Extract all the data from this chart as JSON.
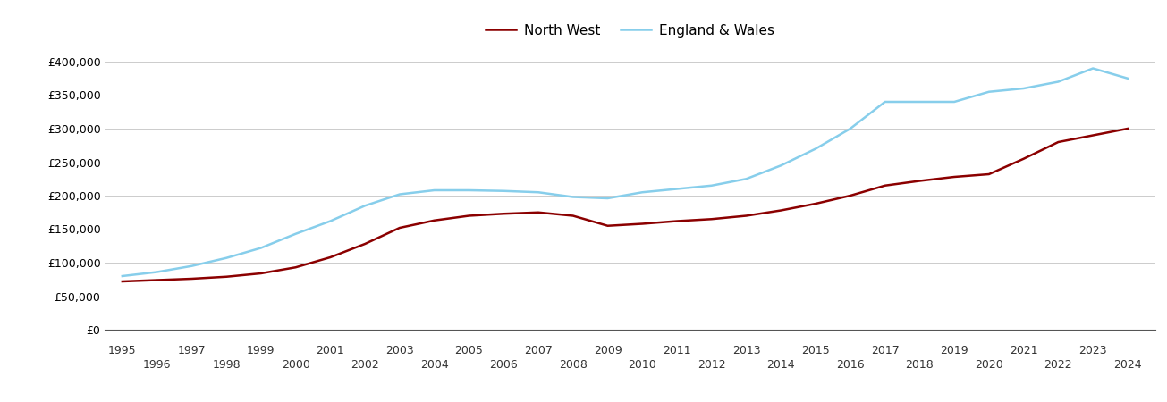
{
  "north_west": {
    "years": [
      1995,
      1996,
      1997,
      1998,
      1999,
      2000,
      2001,
      2002,
      2003,
      2004,
      2005,
      2006,
      2007,
      2008,
      2009,
      2010,
      2011,
      2012,
      2013,
      2014,
      2015,
      2016,
      2017,
      2018,
      2019,
      2020,
      2021,
      2022,
      2023,
      2024
    ],
    "values": [
      72000,
      74000,
      76000,
      79000,
      84000,
      93000,
      108000,
      128000,
      152000,
      163000,
      170000,
      173000,
      175000,
      170000,
      155000,
      158000,
      162000,
      165000,
      170000,
      178000,
      188000,
      200000,
      215000,
      222000,
      228000,
      232000,
      255000,
      280000,
      290000,
      300000
    ]
  },
  "england_wales": {
    "years": [
      1995,
      1996,
      1997,
      1998,
      1999,
      2000,
      2001,
      2002,
      2003,
      2004,
      2005,
      2006,
      2007,
      2008,
      2009,
      2010,
      2011,
      2012,
      2013,
      2014,
      2015,
      2016,
      2017,
      2018,
      2019,
      2020,
      2021,
      2022,
      2023,
      2024
    ],
    "values": [
      80000,
      86000,
      95000,
      107000,
      122000,
      143000,
      162000,
      185000,
      202000,
      208000,
      208000,
      207000,
      205000,
      198000,
      196000,
      205000,
      210000,
      215000,
      225000,
      245000,
      270000,
      300000,
      340000,
      340000,
      340000,
      355000,
      360000,
      370000,
      390000,
      375000
    ]
  },
  "nw_color": "#8b0000",
  "ew_color": "#87ceeb",
  "nw_label": "North West",
  "ew_label": "England & Wales",
  "ylim": [
    0,
    420000
  ],
  "yticks": [
    0,
    50000,
    100000,
    150000,
    200000,
    250000,
    300000,
    350000,
    400000
  ],
  "xlim_left": 1994.5,
  "xlim_right": 2024.8,
  "background_color": "#ffffff",
  "grid_color": "#cccccc",
  "line_width": 1.8,
  "tick_fontsize": 9,
  "legend_fontsize": 11
}
